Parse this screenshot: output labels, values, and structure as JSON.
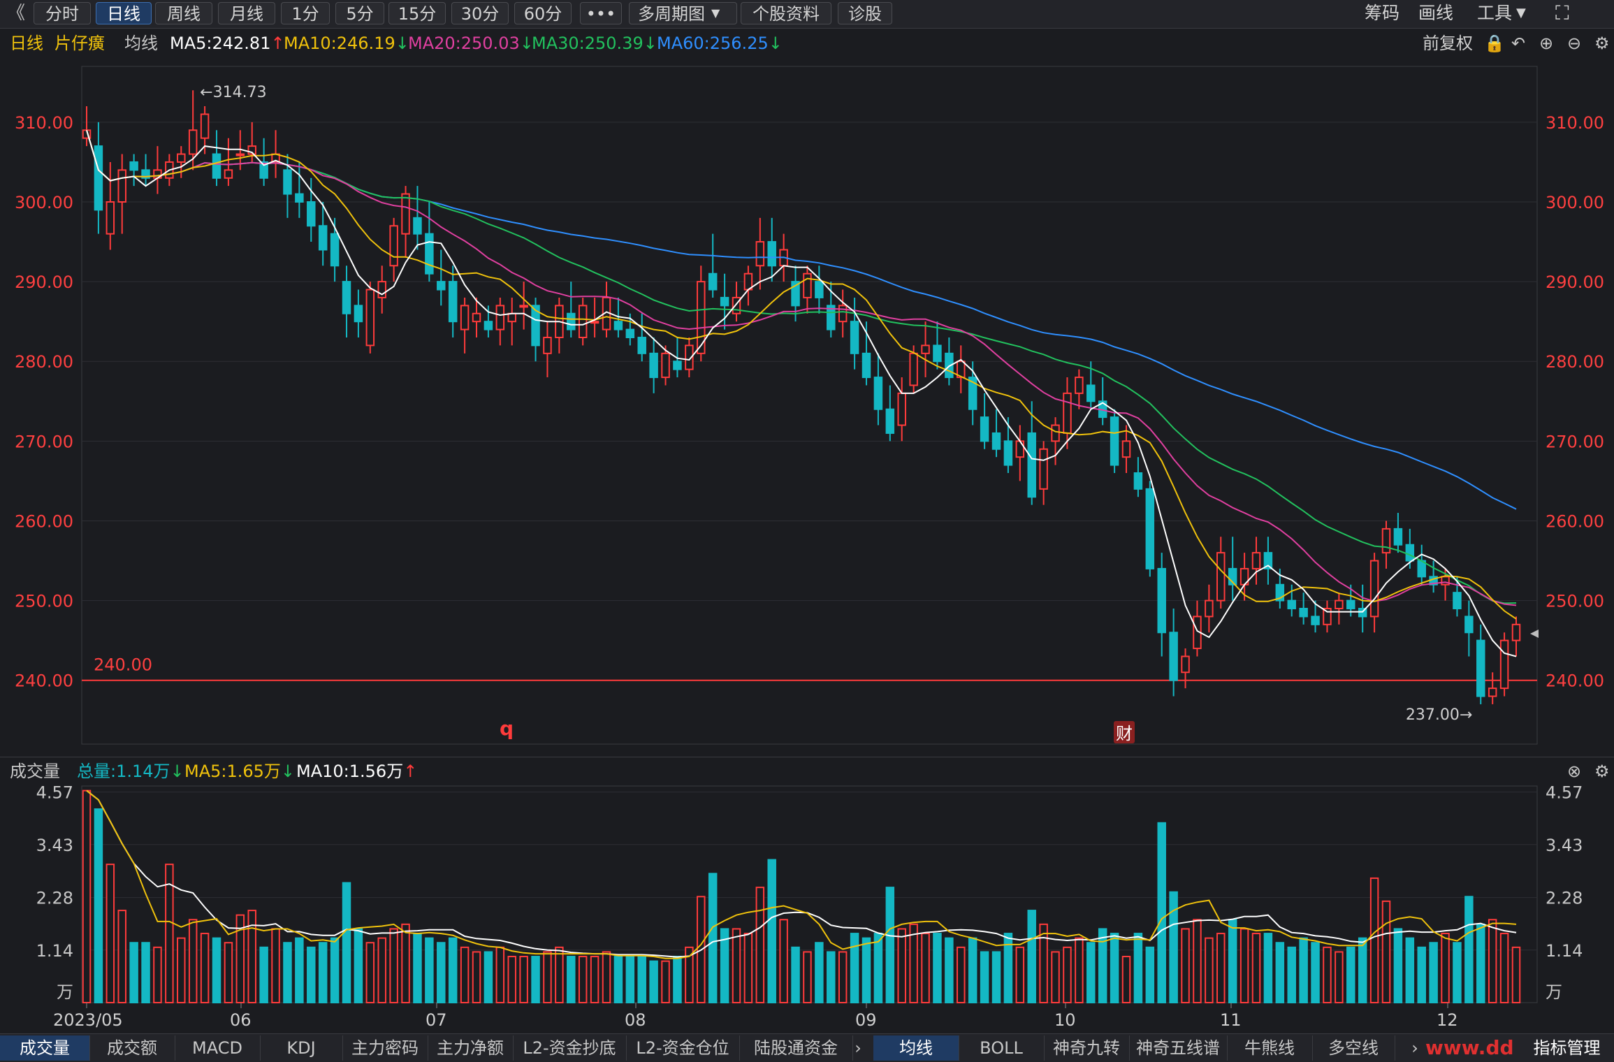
{
  "toolbar": {
    "back_icon": "double-chevron-left-icon",
    "buttons": [
      "分时",
      "日线",
      "周线",
      "月线",
      "1分",
      "5分",
      "15分",
      "30分",
      "60分",
      "•••",
      "多周期图",
      "个股资料",
      "诊股"
    ],
    "active": "日线",
    "right": [
      "筹码",
      "画线",
      "工具"
    ],
    "fullscreen_icon": "fullscreen-icon"
  },
  "infobar": {
    "period": "日线",
    "stock": "片仔癀",
    "ma_label": "均线",
    "ma5": "MA5:242.81",
    "ma10": "MA10:246.19",
    "ma20": "MA20:250.03",
    "ma30": "MA30:250.39",
    "ma60": "MA60:256.25",
    "adjust": "前复权"
  },
  "volume_bar": {
    "title": "成交量",
    "total": "总量:1.14万",
    "ma5": "MA5:1.65万",
    "ma10": "MA10:1.56万"
  },
  "bottom_tabs_left": [
    "成交量",
    "成交额",
    "MACD",
    "KDJ",
    "主力密码",
    "主力净额",
    "L2-资金抄底",
    "L2-资金仓位",
    "陆股通资金"
  ],
  "bottom_tabs_right": [
    "均线",
    "BOLL",
    "神奇九转",
    "神奇五线谱",
    "牛熊线",
    "多空线"
  ],
  "bottom_tab_manage": "指标管理",
  "watermark": "www.dd",
  "colors": {
    "up": "#ff3b3b",
    "down": "#14b8c4",
    "ma5": "#ffffff",
    "ma10": "#f0c20c",
    "ma20": "#e040a0",
    "ma30": "#22c15e",
    "ma60": "#2f8fff",
    "axis_text": "#ff4040"
  },
  "chart_data": [
    {
      "type": "candlestick",
      "yticks": [
        "310.00",
        "300.00",
        "290.00",
        "280.00",
        "270.00",
        "260.00",
        "250.00",
        "240.00"
      ],
      "ylim": [
        232,
        317
      ],
      "xlabels": [
        "2023/05",
        "06",
        "07",
        "08",
        "09",
        "10",
        "11",
        "12"
      ],
      "high_label": "314.73",
      "low_label": "237.00",
      "hline_label": "240.00",
      "hline_value": 240,
      "marker_q": "q",
      "marker_cai": "财",
      "ohlc": [
        [
          308,
          312,
          307,
          309
        ],
        [
          307,
          310,
          296,
          299
        ],
        [
          296,
          305,
          294,
          300
        ],
        [
          300,
          306,
          296,
          304
        ],
        [
          305,
          306,
          302,
          304
        ],
        [
          304,
          306,
          302,
          303
        ],
        [
          303,
          307,
          301,
          304
        ],
        [
          303,
          306,
          302,
          305
        ],
        [
          305,
          307,
          303,
          306
        ],
        [
          306,
          314,
          304,
          309
        ],
        [
          308,
          312,
          306,
          311
        ],
        [
          306,
          309,
          302,
          303
        ],
        [
          303,
          308,
          302,
          304
        ],
        [
          306,
          309,
          304,
          306
        ],
        [
          306,
          310,
          305,
          307
        ],
        [
          305,
          308,
          302,
          303
        ],
        [
          305,
          309,
          303,
          306
        ],
        [
          304,
          306,
          298,
          301
        ],
        [
          301,
          305,
          298,
          300
        ],
        [
          300,
          303,
          295,
          297
        ],
        [
          297,
          300,
          292,
          294
        ],
        [
          296,
          298,
          290,
          292
        ],
        [
          290,
          292,
          283,
          286
        ],
        [
          287,
          289,
          283,
          285
        ],
        [
          282,
          290,
          281,
          289
        ],
        [
          288,
          292,
          286,
          290
        ],
        [
          292,
          298,
          290,
          297
        ],
        [
          296,
          302,
          293,
          301
        ],
        [
          298,
          302,
          294,
          296
        ],
        [
          296,
          300,
          290,
          291
        ],
        [
          290,
          294,
          287,
          289
        ],
        [
          290,
          292,
          283,
          285
        ],
        [
          284,
          288,
          281,
          287
        ],
        [
          285,
          288,
          283,
          286
        ],
        [
          285,
          287,
          283,
          284
        ],
        [
          284,
          288,
          282,
          287
        ],
        [
          285,
          288,
          282,
          286
        ],
        [
          287,
          290,
          284,
          287
        ],
        [
          287,
          288,
          280,
          282
        ],
        [
          281,
          285,
          278,
          283
        ],
        [
          283,
          288,
          281,
          287
        ],
        [
          286,
          290,
          283,
          284
        ],
        [
          283,
          288,
          282,
          287
        ],
        [
          285,
          288,
          283,
          285
        ],
        [
          284,
          290,
          283,
          288
        ],
        [
          285,
          288,
          283,
          284
        ],
        [
          284,
          286,
          282,
          283
        ],
        [
          283,
          286,
          280,
          281
        ],
        [
          281,
          283,
          276,
          278
        ],
        [
          278,
          282,
          277,
          281
        ],
        [
          280,
          283,
          278,
          279
        ],
        [
          279,
          283,
          278,
          282
        ],
        [
          281,
          292,
          280,
          290
        ],
        [
          291,
          296,
          288,
          289
        ],
        [
          288,
          291,
          284,
          287
        ],
        [
          286,
          290,
          285,
          288
        ],
        [
          289,
          292,
          287,
          291
        ],
        [
          292,
          298,
          289,
          295
        ],
        [
          295,
          298,
          290,
          292
        ],
        [
          292,
          296,
          290,
          294
        ],
        [
          290,
          292,
          285,
          287
        ],
        [
          288,
          292,
          286,
          291
        ],
        [
          290,
          292,
          286,
          288
        ],
        [
          287,
          290,
          283,
          284
        ],
        [
          285,
          289,
          283,
          287
        ],
        [
          285,
          288,
          279,
          281
        ],
        [
          281,
          285,
          277,
          278
        ],
        [
          278,
          281,
          272,
          274
        ],
        [
          274,
          277,
          270,
          271
        ],
        [
          272,
          278,
          270,
          276
        ],
        [
          277,
          282,
          276,
          281
        ],
        [
          281,
          285,
          278,
          282
        ],
        [
          282,
          285,
          279,
          280
        ],
        [
          281,
          283,
          277,
          278
        ],
        [
          278,
          282,
          276,
          280
        ],
        [
          278,
          280,
          272,
          274
        ],
        [
          273,
          276,
          269,
          270
        ],
        [
          271,
          274,
          268,
          269
        ],
        [
          270,
          273,
          266,
          267
        ],
        [
          268,
          272,
          265,
          270
        ],
        [
          271,
          275,
          262,
          263
        ],
        [
          264,
          270,
          262,
          269
        ],
        [
          270,
          273,
          267,
          272
        ],
        [
          271,
          278,
          269,
          276
        ],
        [
          276,
          279,
          274,
          278
        ],
        [
          277,
          280,
          274,
          275
        ],
        [
          275,
          278,
          272,
          273
        ],
        [
          273,
          274,
          266,
          267
        ],
        [
          268,
          272,
          266,
          270
        ],
        [
          266,
          268,
          263,
          264
        ],
        [
          264,
          265,
          253,
          254
        ],
        [
          254,
          256,
          243,
          246
        ],
        [
          246,
          249,
          238,
          240
        ],
        [
          241,
          244,
          239,
          243
        ],
        [
          244,
          250,
          243,
          248
        ],
        [
          248,
          252,
          246,
          250
        ],
        [
          250,
          258,
          249,
          256
        ],
        [
          254,
          258,
          250,
          252
        ],
        [
          252,
          256,
          250,
          254
        ],
        [
          254,
          258,
          252,
          256
        ],
        [
          256,
          258,
          252,
          254
        ],
        [
          252,
          254,
          249,
          250
        ],
        [
          250,
          252,
          248,
          249
        ],
        [
          249,
          251,
          247,
          248
        ],
        [
          248,
          250,
          246,
          247
        ],
        [
          247,
          250,
          246,
          249
        ],
        [
          249,
          251,
          247,
          250
        ],
        [
          250,
          252,
          248,
          249
        ],
        [
          249,
          252,
          246,
          248
        ],
        [
          248,
          256,
          246,
          255
        ],
        [
          256,
          260,
          254,
          259
        ],
        [
          259,
          261,
          256,
          257
        ],
        [
          257,
          259,
          254,
          255
        ],
        [
          255,
          257,
          252,
          253
        ],
        [
          253,
          255,
          251,
          252
        ],
        [
          252,
          254,
          250,
          253
        ],
        [
          251,
          253,
          248,
          249
        ],
        [
          248,
          250,
          243,
          246
        ],
        [
          245,
          247,
          237,
          238
        ],
        [
          238,
          241,
          237,
          239
        ],
        [
          239,
          246,
          238,
          245
        ],
        [
          245,
          248,
          243,
          247
        ]
      ]
    },
    {
      "type": "bar",
      "name": "成交量",
      "yticks": [
        "4.57",
        "3.43",
        "2.28",
        "1.14"
      ],
      "unit": "万",
      "ylim": [
        0,
        4.7
      ],
      "values": [
        4.6,
        4.2,
        3.0,
        2.0,
        1.3,
        1.3,
        1.2,
        3.0,
        1.4,
        1.8,
        1.5,
        1.4,
        1.3,
        1.9,
        2.0,
        1.2,
        1.6,
        1.3,
        1.4,
        1.2,
        1.3,
        1.4,
        2.6,
        1.6,
        1.3,
        1.4,
        1.6,
        1.7,
        1.5,
        1.4,
        1.3,
        1.4,
        1.2,
        1.1,
        1.1,
        1.2,
        1.0,
        1.0,
        1.0,
        1.1,
        1.2,
        1.0,
        1.0,
        1.0,
        1.1,
        1.0,
        1.0,
        1.0,
        0.9,
        0.9,
        1.0,
        1.2,
        2.3,
        2.8,
        1.6,
        1.6,
        1.5,
        2.5,
        3.1,
        1.8,
        1.2,
        1.1,
        1.3,
        1.1,
        1.1,
        1.5,
        1.4,
        1.5,
        2.5,
        1.6,
        1.7,
        1.5,
        1.5,
        1.4,
        1.2,
        1.4,
        1.1,
        1.1,
        1.5,
        1.2,
        2.0,
        1.7,
        1.1,
        1.2,
        1.4,
        1.3,
        1.6,
        1.5,
        1.0,
        1.5,
        1.2,
        3.9,
        2.4,
        1.6,
        1.8,
        1.4,
        1.5,
        1.8,
        1.6,
        1.5,
        1.5,
        1.3,
        1.2,
        1.4,
        1.3,
        1.2,
        1.1,
        1.2,
        1.4,
        2.7,
        2.2,
        1.6,
        1.4,
        1.2,
        1.3,
        1.5,
        1.3,
        2.3,
        1.7,
        1.8,
        1.5,
        1.2
      ]
    }
  ]
}
